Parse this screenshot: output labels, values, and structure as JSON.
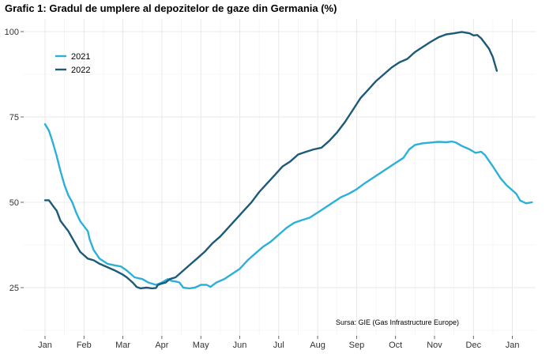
{
  "chart_data": {
    "type": "line",
    "title": "Grafic 1: Gradul de umplere al depozitelor de gaze din Germania (%)",
    "xlabel": "",
    "ylabel": "",
    "source": "Sursa: GIE (Gas Infrastructure Europe)",
    "x_ticks": [
      "Jan",
      "Feb",
      "Mar",
      "Apr",
      "May",
      "Jun",
      "Jul",
      "Aug",
      "Sep",
      "Oct",
      "Nov",
      "Dec",
      "Jan"
    ],
    "y_ticks": [
      25,
      50,
      75,
      100
    ],
    "ylim": [
      12,
      102
    ],
    "x_domain_months": [
      0,
      12
    ],
    "legend_position": "top-left",
    "series": [
      {
        "name": "2021",
        "color": "#2bb0d9",
        "points": [
          [
            0.0,
            72.9
          ],
          [
            0.1,
            71.0
          ],
          [
            0.2,
            67.5
          ],
          [
            0.3,
            63.5
          ],
          [
            0.4,
            59.0
          ],
          [
            0.5,
            55.0
          ],
          [
            0.6,
            52.0
          ],
          [
            0.7,
            50.0
          ],
          [
            0.8,
            47.0
          ],
          [
            0.9,
            44.5
          ],
          [
            1.0,
            43.0
          ],
          [
            1.1,
            41.5
          ],
          [
            1.15,
            39.0
          ],
          [
            1.25,
            36.0
          ],
          [
            1.4,
            33.5
          ],
          [
            1.6,
            32.0
          ],
          [
            1.8,
            31.5
          ],
          [
            1.95,
            31.2
          ],
          [
            2.1,
            30.0
          ],
          [
            2.3,
            28.0
          ],
          [
            2.5,
            27.5
          ],
          [
            2.65,
            26.5
          ],
          [
            2.85,
            25.8
          ],
          [
            3.0,
            26.5
          ],
          [
            3.15,
            27.5
          ],
          [
            3.25,
            27.0
          ],
          [
            3.35,
            26.8
          ],
          [
            3.45,
            26.5
          ],
          [
            3.55,
            25.0
          ],
          [
            3.7,
            24.8
          ],
          [
            3.85,
            25.0
          ],
          [
            4.0,
            25.8
          ],
          [
            4.15,
            25.8
          ],
          [
            4.25,
            25.2
          ],
          [
            4.4,
            26.5
          ],
          [
            4.6,
            27.5
          ],
          [
            4.8,
            29.0
          ],
          [
            5.0,
            30.5
          ],
          [
            5.2,
            33.0
          ],
          [
            5.4,
            35.0
          ],
          [
            5.6,
            37.0
          ],
          [
            5.8,
            38.5
          ],
          [
            6.0,
            40.5
          ],
          [
            6.2,
            42.5
          ],
          [
            6.4,
            44.0
          ],
          [
            6.6,
            44.8
          ],
          [
            6.8,
            45.5
          ],
          [
            7.0,
            47.0
          ],
          [
            7.2,
            48.5
          ],
          [
            7.4,
            50.0
          ],
          [
            7.6,
            51.5
          ],
          [
            7.8,
            52.5
          ],
          [
            8.0,
            53.8
          ],
          [
            8.2,
            55.5
          ],
          [
            8.4,
            57.0
          ],
          [
            8.6,
            58.5
          ],
          [
            8.8,
            60.0
          ],
          [
            9.0,
            61.5
          ],
          [
            9.2,
            63.0
          ],
          [
            9.35,
            65.5
          ],
          [
            9.5,
            66.8
          ],
          [
            9.7,
            67.3
          ],
          [
            9.9,
            67.5
          ],
          [
            10.1,
            67.7
          ],
          [
            10.3,
            67.6
          ],
          [
            10.45,
            67.8
          ],
          [
            10.55,
            67.5
          ],
          [
            10.7,
            66.5
          ],
          [
            10.9,
            65.5
          ],
          [
            11.05,
            64.5
          ],
          [
            11.2,
            64.8
          ],
          [
            11.3,
            63.8
          ],
          [
            11.5,
            60.5
          ],
          [
            11.7,
            57.0
          ],
          [
            11.85,
            55.0
          ],
          [
            12.0,
            53.5
          ],
          [
            12.1,
            52.5
          ],
          [
            12.2,
            50.5
          ],
          [
            12.35,
            49.7
          ],
          [
            12.5,
            50.0
          ]
        ]
      },
      {
        "name": "2022",
        "color": "#1c5a78",
        "points": [
          [
            0.0,
            50.6
          ],
          [
            0.1,
            50.6
          ],
          [
            0.2,
            49.0
          ],
          [
            0.3,
            47.5
          ],
          [
            0.4,
            44.5
          ],
          [
            0.5,
            43.0
          ],
          [
            0.6,
            41.5
          ],
          [
            0.7,
            39.5
          ],
          [
            0.8,
            37.5
          ],
          [
            0.9,
            35.5
          ],
          [
            1.0,
            34.5
          ],
          [
            1.1,
            33.5
          ],
          [
            1.25,
            33.0
          ],
          [
            1.4,
            32.0
          ],
          [
            1.6,
            31.0
          ],
          [
            1.8,
            30.0
          ],
          [
            2.0,
            28.8
          ],
          [
            2.1,
            28.0
          ],
          [
            2.25,
            26.5
          ],
          [
            2.35,
            25.2
          ],
          [
            2.45,
            24.8
          ],
          [
            2.6,
            25.0
          ],
          [
            2.75,
            24.8
          ],
          [
            2.85,
            24.9
          ],
          [
            2.9,
            25.8
          ],
          [
            3.0,
            26.2
          ],
          [
            3.1,
            26.5
          ],
          [
            3.2,
            27.5
          ],
          [
            3.35,
            28.0
          ],
          [
            3.5,
            29.5
          ],
          [
            3.7,
            31.5
          ],
          [
            3.9,
            33.5
          ],
          [
            4.1,
            35.5
          ],
          [
            4.3,
            38.0
          ],
          [
            4.5,
            40.0
          ],
          [
            4.7,
            42.5
          ],
          [
            4.9,
            45.0
          ],
          [
            5.1,
            47.5
          ],
          [
            5.3,
            50.0
          ],
          [
            5.5,
            53.0
          ],
          [
            5.7,
            55.5
          ],
          [
            5.9,
            58.0
          ],
          [
            6.1,
            60.5
          ],
          [
            6.3,
            62.0
          ],
          [
            6.5,
            64.0
          ],
          [
            6.7,
            64.8
          ],
          [
            6.9,
            65.5
          ],
          [
            7.1,
            66.0
          ],
          [
            7.3,
            68.0
          ],
          [
            7.5,
            70.5
          ],
          [
            7.7,
            73.5
          ],
          [
            7.9,
            77.0
          ],
          [
            8.1,
            80.5
          ],
          [
            8.3,
            83.0
          ],
          [
            8.5,
            85.5
          ],
          [
            8.7,
            87.5
          ],
          [
            8.9,
            89.5
          ],
          [
            9.1,
            91.0
          ],
          [
            9.3,
            92.0
          ],
          [
            9.5,
            94.0
          ],
          [
            9.7,
            95.5
          ],
          [
            9.9,
            97.0
          ],
          [
            10.1,
            98.3
          ],
          [
            10.3,
            99.2
          ],
          [
            10.5,
            99.5
          ],
          [
            10.7,
            99.9
          ],
          [
            10.9,
            99.5
          ],
          [
            11.0,
            98.9
          ],
          [
            11.1,
            99.0
          ],
          [
            11.2,
            98.0
          ],
          [
            11.3,
            96.5
          ],
          [
            11.4,
            95.0
          ],
          [
            11.5,
            92.5
          ],
          [
            11.6,
            88.5
          ]
        ]
      }
    ]
  }
}
